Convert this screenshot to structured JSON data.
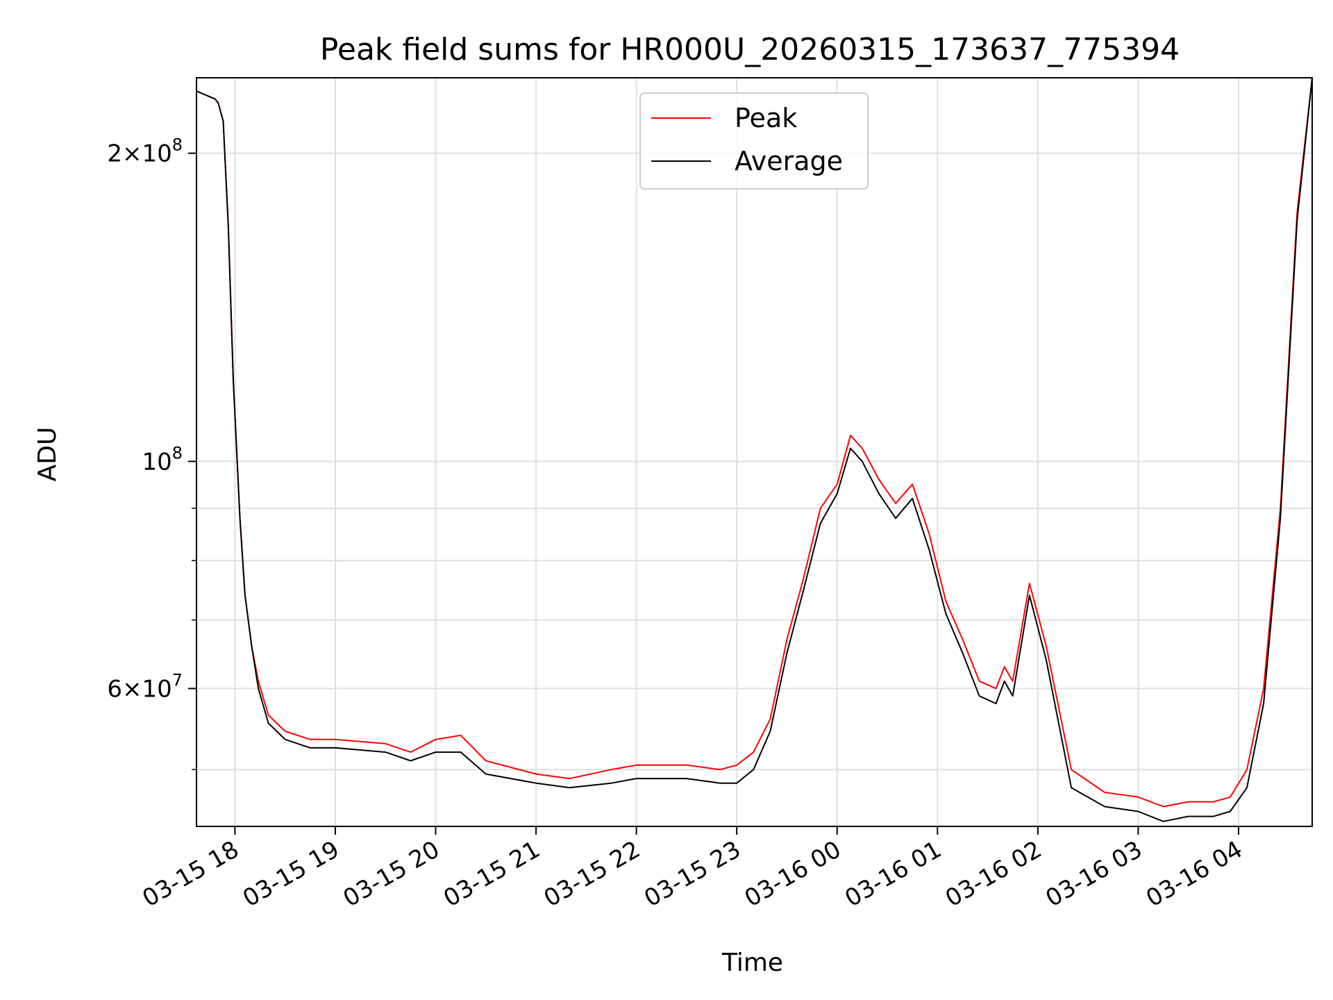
{
  "chart_data": {
    "type": "line",
    "title": "Peak field sums for HR000U_20260315_173637_775394",
    "xlabel": "Time",
    "ylabel": "ADU",
    "yscale": "log",
    "ylim": [
      44000000,
      237000000
    ],
    "xlim": [
      "03-15 17:37",
      "03-16 04:44"
    ],
    "grid": true,
    "legend_position": "top-center",
    "x_ticks": [
      "03-15 18",
      "03-15 19",
      "03-15 20",
      "03-15 21",
      "03-15 22",
      "03-15 23",
      "03-16 00",
      "03-16 01",
      "03-16 02",
      "03-16 03",
      "03-16 04"
    ],
    "y_tick_labels": [
      {
        "value": 200000000,
        "mantissa": "2",
        "exponent": "8"
      },
      {
        "value": 100000000,
        "mantissa": "",
        "exponent": "8"
      },
      {
        "value": 60000000,
        "mantissa": "6",
        "exponent": "7"
      }
    ],
    "x": [
      "03-15 17:37",
      "03-15 17:48",
      "03-15 17:50",
      "03-15 17:53",
      "03-15 17:56",
      "03-15 17:59",
      "03-15 18:03",
      "03-15 18:06",
      "03-15 18:10",
      "03-15 18:14",
      "03-15 18:20",
      "03-15 18:30",
      "03-15 18:45",
      "03-15 19:00",
      "03-15 19:30",
      "03-15 19:45",
      "03-15 20:00",
      "03-15 20:15",
      "03-15 20:30",
      "03-15 21:00",
      "03-15 21:20",
      "03-15 21:45",
      "03-15 22:00",
      "03-15 22:30",
      "03-15 22:50",
      "03-15 23:00",
      "03-15 23:10",
      "03-15 23:20",
      "03-15 23:30",
      "03-15 23:40",
      "03-15 23:50",
      "03-16 00:00",
      "03-16 00:08",
      "03-16 00:15",
      "03-16 00:25",
      "03-16 00:35",
      "03-16 00:45",
      "03-16 00:55",
      "03-16 01:05",
      "03-16 01:15",
      "03-16 01:25",
      "03-16 01:35",
      "03-16 01:40",
      "03-16 01:45",
      "03-16 01:55",
      "03-16 02:05",
      "03-16 02:20",
      "03-16 02:40",
      "03-16 03:00",
      "03-16 03:15",
      "03-16 03:30",
      "03-16 03:45",
      "03-16 03:55",
      "03-16 04:05",
      "03-16 04:15",
      "03-16 04:25",
      "03-16 04:35",
      "03-16 04:44"
    ],
    "series": [
      {
        "name": "Peak",
        "color": "#ff0000",
        "values": [
          230000000,
          226000000,
          224000000,
          215000000,
          170000000,
          120000000,
          88000000,
          74000000,
          66000000,
          61000000,
          56500000,
          54500000,
          53500000,
          53500000,
          53000000,
          52000000,
          53500000,
          54000000,
          51000000,
          49500000,
          49000000,
          50000000,
          50500000,
          50500000,
          50000000,
          50500000,
          52000000,
          56000000,
          67000000,
          77000000,
          90000000,
          95000000,
          106000000,
          103000000,
          96000000,
          91000000,
          95000000,
          85000000,
          73000000,
          67000000,
          61000000,
          60000000,
          63000000,
          61000000,
          76000000,
          66000000,
          50000000,
          47500000,
          47000000,
          46000000,
          46500000,
          46500000,
          47000000,
          50000000,
          60000000,
          90000000,
          175000000,
          237000000
        ]
      },
      {
        "name": "Average",
        "color": "#000000",
        "values": [
          230000000,
          226000000,
          224000000,
          215000000,
          170000000,
          120000000,
          88000000,
          74000000,
          66000000,
          60000000,
          55500000,
          53500000,
          52500000,
          52500000,
          52000000,
          51000000,
          52000000,
          52000000,
          49500000,
          48500000,
          48000000,
          48500000,
          49000000,
          49000000,
          48500000,
          48500000,
          50000000,
          54500000,
          65000000,
          75000000,
          87000000,
          93000000,
          103000000,
          100000000,
          93000000,
          88000000,
          92000000,
          82000000,
          71000000,
          65000000,
          59000000,
          58000000,
          61000000,
          59000000,
          74000000,
          64000000,
          48000000,
          46000000,
          45500000,
          44500000,
          45000000,
          45000000,
          45500000,
          48000000,
          58000000,
          88000000,
          172000000,
          237000000
        ]
      }
    ]
  }
}
